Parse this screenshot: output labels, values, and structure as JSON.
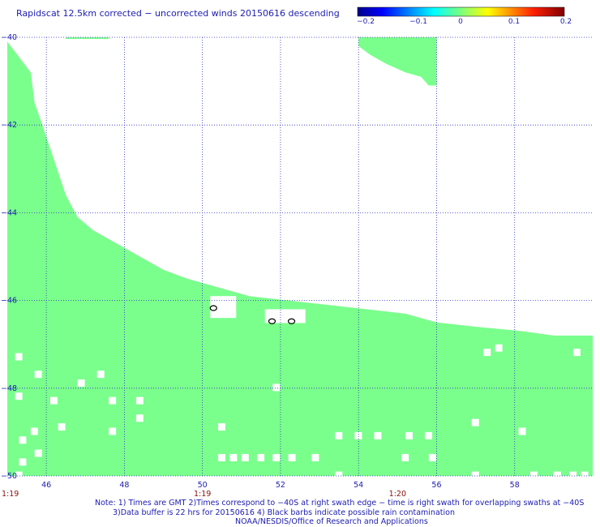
{
  "header": {
    "title": "Rapidscat 12.5km corrected − uncorrected winds 20150616 descending"
  },
  "colorbar": {
    "labels": [
      "−0.2",
      "−0.1",
      "0",
      "0.1",
      "0.2"
    ],
    "min": -0.2,
    "max": 0.2
  },
  "chart_data": {
    "type": "heatmap",
    "title": "Rapidscat 12.5km corrected − uncorrected winds 20150616 descending",
    "xlim": [
      45,
      60
    ],
    "ylim": [
      -50,
      -40
    ],
    "x_ticks": [
      46,
      48,
      50,
      52,
      54,
      56,
      58
    ],
    "x_tick_labels": [
      "46",
      "48",
      "50",
      "52",
      "54",
      "56",
      "58"
    ],
    "y_ticks": [
      -40,
      -42,
      -44,
      -46,
      -48,
      -50
    ],
    "y_tick_labels": [
      "−40",
      "−42",
      "−44",
      "−46",
      "−48",
      "−50"
    ],
    "time_labels": [
      {
        "lon": 45,
        "text": "1:19"
      },
      {
        "lon": 50,
        "text": "1:19"
      },
      {
        "lon": 55,
        "text": "1:20"
      }
    ],
    "grid": true,
    "field_value": 0,
    "field_color": "#7aff8c",
    "swath_top_boundary": [
      [
        45.0,
        -40.1
      ],
      [
        45.6,
        -40.8
      ],
      [
        45.7,
        -41.5
      ],
      [
        45.9,
        -42.0
      ],
      [
        46.2,
        -42.8
      ],
      [
        46.5,
        -43.6
      ],
      [
        46.8,
        -44.1
      ],
      [
        47.2,
        -44.4
      ],
      [
        47.8,
        -44.7
      ],
      [
        48.4,
        -45.0
      ],
      [
        49.0,
        -45.3
      ],
      [
        49.6,
        -45.5
      ],
      [
        50.4,
        -45.7
      ],
      [
        51.2,
        -45.9
      ],
      [
        52.2,
        -46.0
      ],
      [
        53.2,
        -46.1
      ],
      [
        54.2,
        -46.2
      ],
      [
        55.2,
        -46.3
      ],
      [
        56.0,
        -46.5
      ],
      [
        57.0,
        -46.6
      ],
      [
        58.2,
        -46.7
      ],
      [
        59.0,
        -46.8
      ],
      [
        60.0,
        -46.8
      ]
    ],
    "ne_patch": [
      [
        54.0,
        -40.0
      ],
      [
        56.0,
        -40.0
      ],
      [
        56.0,
        -41.1
      ],
      [
        55.8,
        -41.1
      ],
      [
        55.6,
        -40.9
      ],
      [
        55.2,
        -40.8
      ],
      [
        54.7,
        -40.6
      ],
      [
        54.3,
        -40.4
      ],
      [
        54.0,
        -40.2
      ]
    ],
    "top_strip": [
      [
        46.5,
        47.6
      ]
    ],
    "missing_cells": [
      [
        45.2,
        -47.2
      ],
      [
        45.7,
        -47.6
      ],
      [
        45.6,
        -48.9
      ],
      [
        46.1,
        -48.2
      ],
      [
        46.3,
        -48.8
      ],
      [
        45.2,
        -48.1
      ],
      [
        45.3,
        -49.1
      ],
      [
        45.3,
        -49.6
      ],
      [
        45.7,
        -49.4
      ],
      [
        45.2,
        -49.9
      ],
      [
        46.8,
        -47.8
      ],
      [
        47.3,
        -47.6
      ],
      [
        47.6,
        -48.2
      ],
      [
        47.6,
        -48.9
      ],
      [
        48.3,
        -48.2
      ],
      [
        48.3,
        -48.6
      ],
      [
        50.4,
        -48.8
      ],
      [
        50.4,
        -49.5
      ],
      [
        50.7,
        -49.5
      ],
      [
        51.0,
        -49.5
      ],
      [
        51.4,
        -49.5
      ],
      [
        51.8,
        -49.5
      ],
      [
        52.2,
        -49.5
      ],
      [
        52.8,
        -49.5
      ],
      [
        53.4,
        -49.0
      ],
      [
        53.9,
        -49.0
      ],
      [
        53.4,
        -49.9
      ],
      [
        54.4,
        -49.0
      ],
      [
        55.2,
        -49.0
      ],
      [
        55.7,
        -49.0
      ],
      [
        55.1,
        -49.5
      ],
      [
        55.8,
        -49.5
      ],
      [
        56.9,
        -48.7
      ],
      [
        57.2,
        -47.1
      ],
      [
        56.9,
        -49.9
      ],
      [
        57.5,
        -47.0
      ],
      [
        58.1,
        -48.9
      ],
      [
        59.5,
        -47.1
      ],
      [
        59.0,
        -49.9
      ],
      [
        59.4,
        -49.9
      ],
      [
        59.7,
        -49.9
      ],
      [
        58.4,
        -49.9
      ],
      [
        51.8,
        -47.9
      ]
    ],
    "ring_markers": [
      [
        50.2,
        -46.1
      ],
      [
        51.7,
        -46.4
      ],
      [
        52.2,
        -46.4
      ]
    ]
  },
  "footer": {
    "line1": "Note: 1) Times are GMT 2)Times correspond to −40S at right swath edge − time is right swath for overlapping swaths at −40S",
    "line2": "3)Data buffer is 22 hrs for 20150616 4) Black barbs indicate possible rain contamination",
    "line3": "NOAA/NESDIS/Office of Research and Applications"
  }
}
